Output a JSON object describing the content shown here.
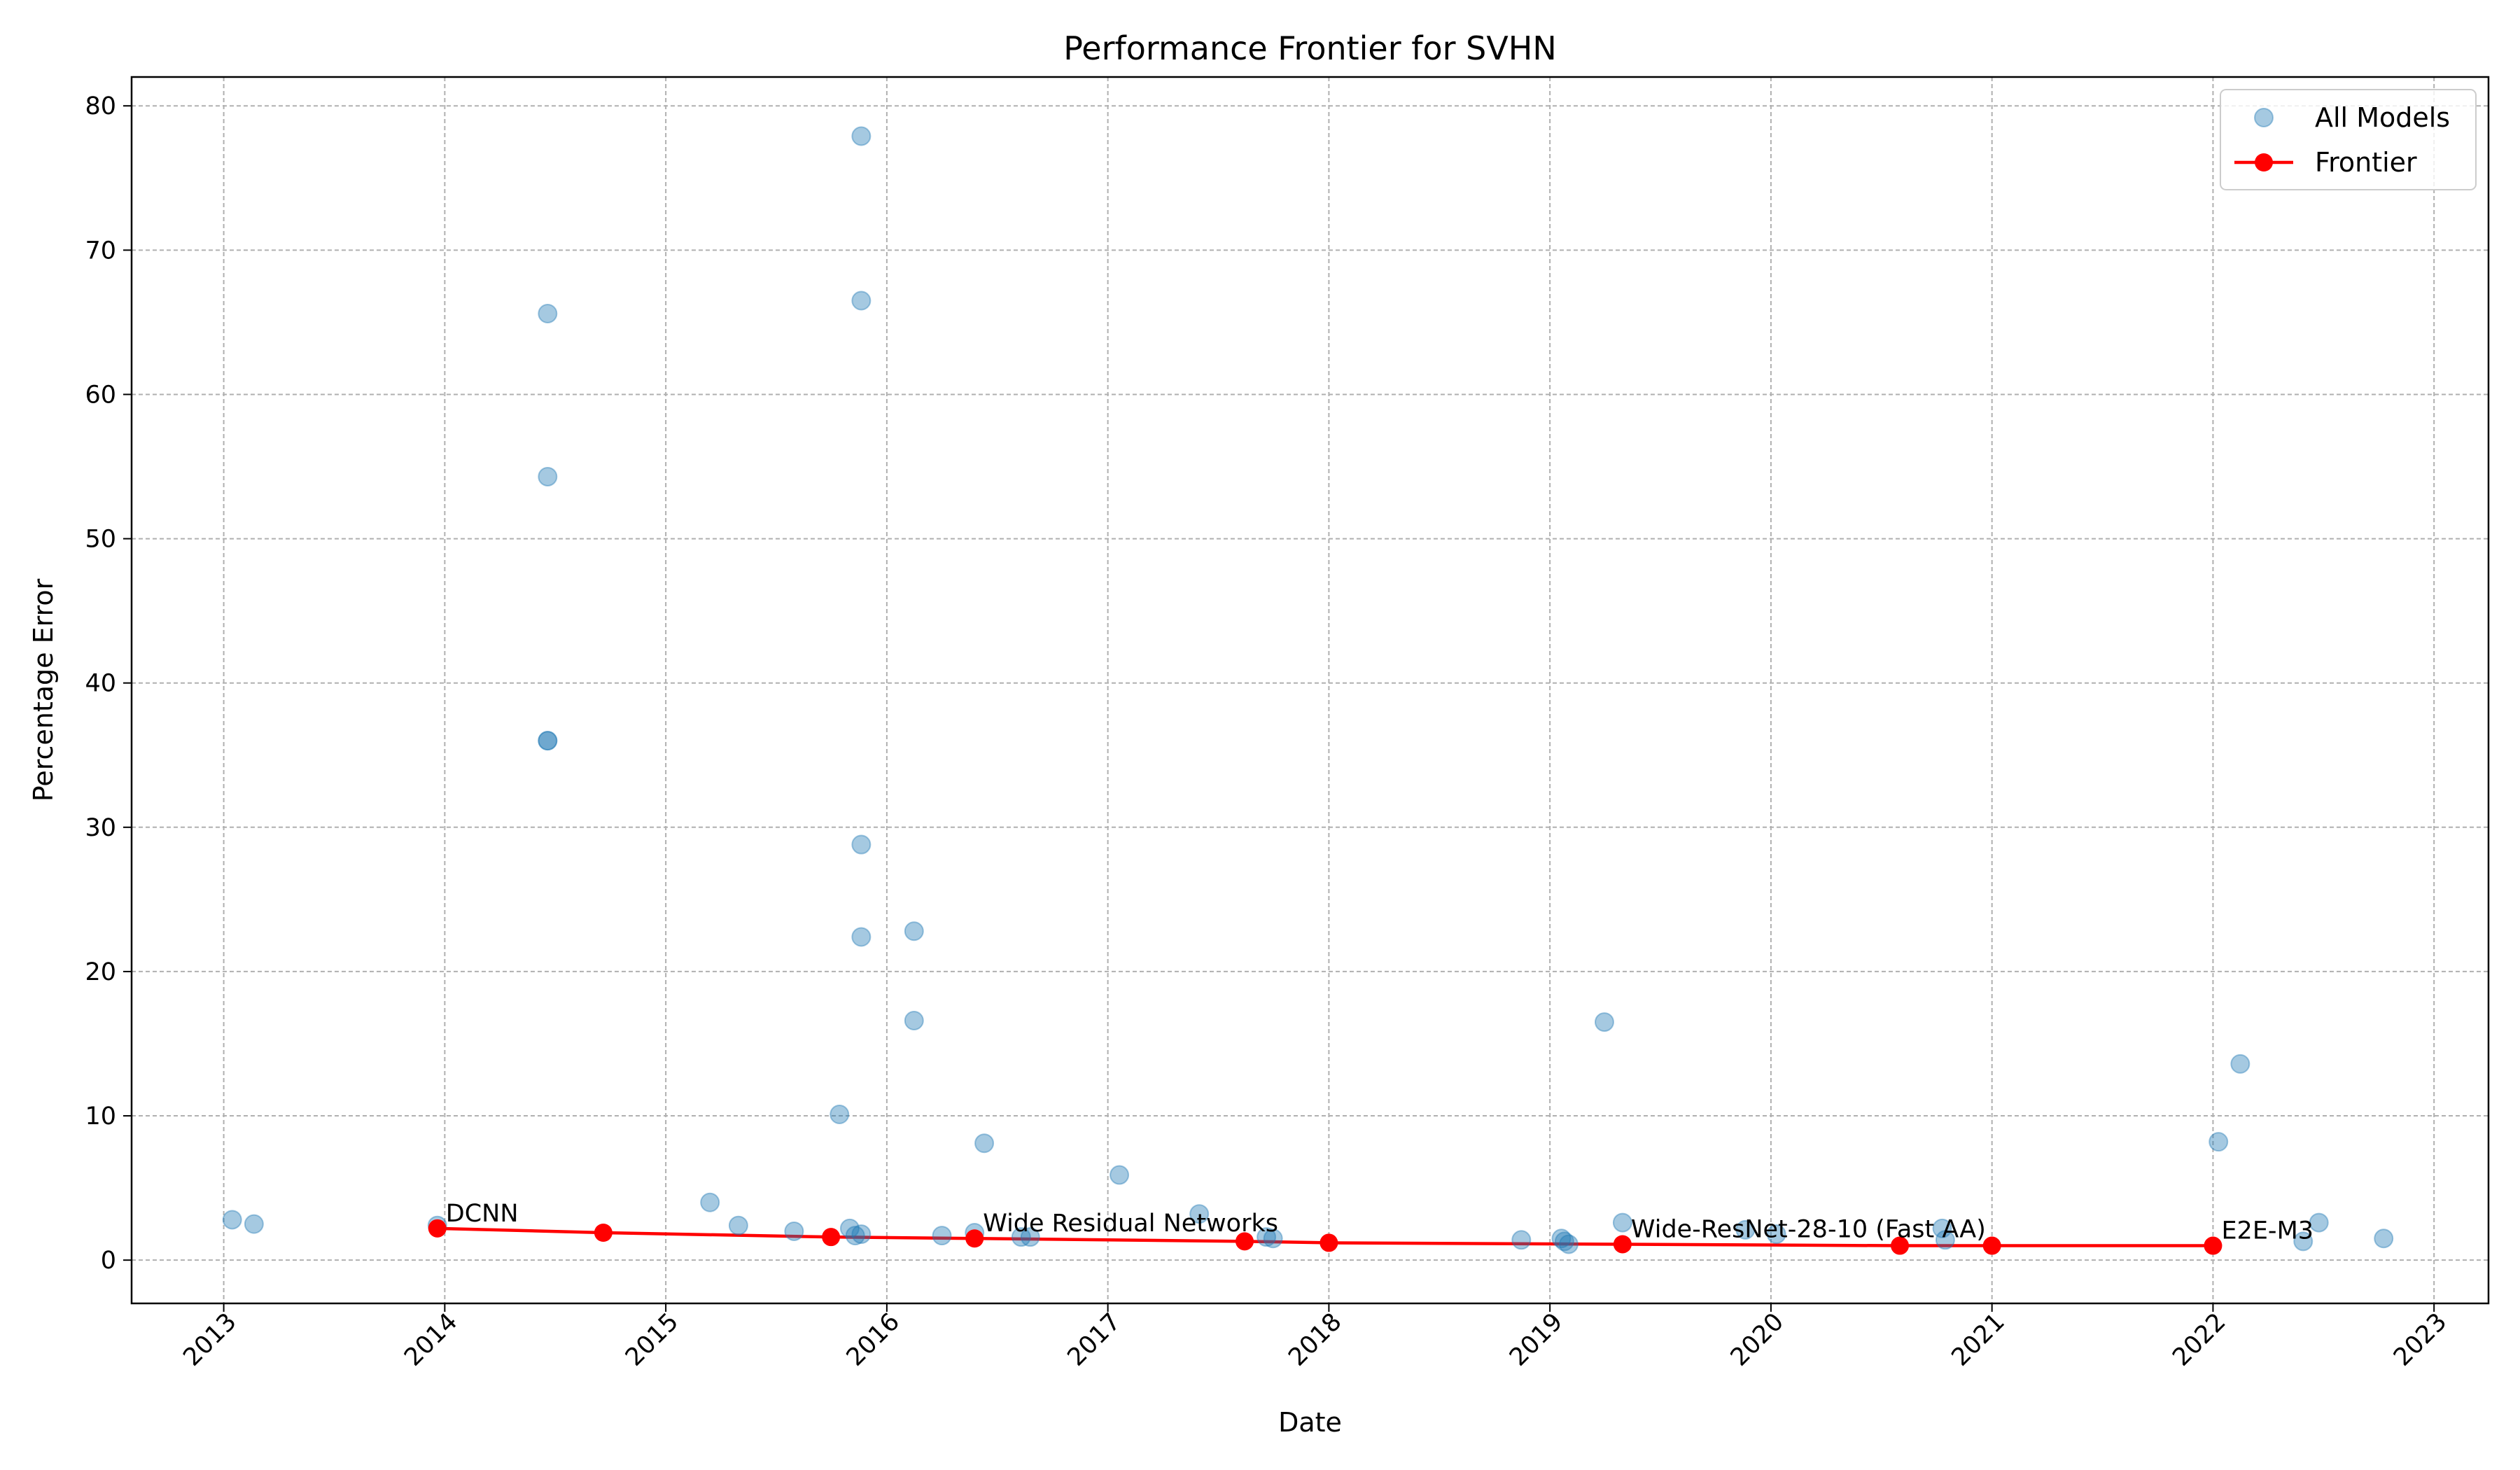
{
  "chart_data": {
    "type": "scatter",
    "title": "Performance Frontier for SVHN",
    "xlabel": "Date",
    "ylabel": "Percentage Error",
    "xlim": [
      "2012-08-01",
      "2023-04-01"
    ],
    "ylim": [
      -3,
      82
    ],
    "x_ticks": [
      "2013",
      "2014",
      "2015",
      "2016",
      "2017",
      "2018",
      "2019",
      "2020",
      "2021",
      "2022",
      "2023"
    ],
    "y_ticks": [
      0,
      10,
      20,
      30,
      40,
      50,
      60,
      70,
      80
    ],
    "grid": true,
    "legend_position": "top-right",
    "legend": [
      "All Models",
      "Frontier"
    ],
    "colors": {
      "all_models": "#1f77b4",
      "frontier": "#ff0000"
    },
    "series": [
      {
        "name": "All Models",
        "points": [
          [
            "2013-01-15",
            2.8
          ],
          [
            "2013-02-20",
            2.5
          ],
          [
            "2013-12-20",
            2.4
          ],
          [
            "2014-06-20",
            65.6
          ],
          [
            "2014-06-20",
            54.3
          ],
          [
            "2014-06-20",
            36.0
          ],
          [
            "2014-06-20",
            36.0
          ],
          [
            "2015-03-15",
            4.0
          ],
          [
            "2015-05-01",
            2.4
          ],
          [
            "2015-08-01",
            2.0
          ],
          [
            "2015-10-15",
            10.1
          ],
          [
            "2015-11-01",
            2.2
          ],
          [
            "2015-11-10",
            1.7
          ],
          [
            "2015-11-20",
            1.8
          ],
          [
            "2015-11-20",
            77.9
          ],
          [
            "2015-11-20",
            66.5
          ],
          [
            "2015-11-20",
            28.8
          ],
          [
            "2015-11-20",
            22.4
          ],
          [
            "2016-02-15",
            22.8
          ],
          [
            "2016-02-15",
            16.6
          ],
          [
            "2016-04-01",
            1.7
          ],
          [
            "2016-05-25",
            1.9
          ],
          [
            "2016-06-10",
            8.1
          ],
          [
            "2016-08-10",
            1.6
          ],
          [
            "2016-08-25",
            1.6
          ],
          [
            "2017-01-20",
            5.9
          ],
          [
            "2017-06-01",
            3.2
          ],
          [
            "2017-09-20",
            1.6
          ],
          [
            "2017-10-01",
            1.5
          ],
          [
            "2018-11-15",
            1.4
          ],
          [
            "2019-01-20",
            1.5
          ],
          [
            "2019-01-25",
            1.3
          ],
          [
            "2019-02-01",
            1.1
          ],
          [
            "2019-04-01",
            16.5
          ],
          [
            "2019-05-01",
            2.6
          ],
          [
            "2019-11-20",
            2.1
          ],
          [
            "2020-01-10",
            1.8
          ],
          [
            "2020-10-10",
            2.2
          ],
          [
            "2020-10-15",
            1.4
          ],
          [
            "2022-01-10",
            8.2
          ],
          [
            "2022-02-15",
            13.6
          ],
          [
            "2022-05-30",
            1.3
          ],
          [
            "2022-06-25",
            2.6
          ],
          [
            "2022-10-10",
            1.5
          ]
        ]
      },
      {
        "name": "Frontier",
        "points": [
          [
            "2013-12-20",
            2.2
          ],
          [
            "2014-09-20",
            1.9
          ],
          [
            "2015-10-01",
            1.6
          ],
          [
            "2016-05-25",
            1.5
          ],
          [
            "2017-08-15",
            1.3
          ],
          [
            "2018-01-01",
            1.2
          ],
          [
            "2019-05-01",
            1.1
          ],
          [
            "2020-08-01",
            1.0
          ],
          [
            "2021-01-01",
            1.0
          ],
          [
            "2022-01-01",
            1.0
          ]
        ]
      }
    ],
    "annotations": [
      {
        "text": "DCNN",
        "x": "2013-12-20",
        "y": 2.2
      },
      {
        "text": "Wide Residual Networks",
        "x": "2016-05-25",
        "y": 1.5
      },
      {
        "text": "Wide-ResNet-28-10 (Fast AA)",
        "x": "2019-05-01",
        "y": 1.1
      },
      {
        "text": "E2E-M3",
        "x": "2022-01-01",
        "y": 1.0
      }
    ]
  }
}
